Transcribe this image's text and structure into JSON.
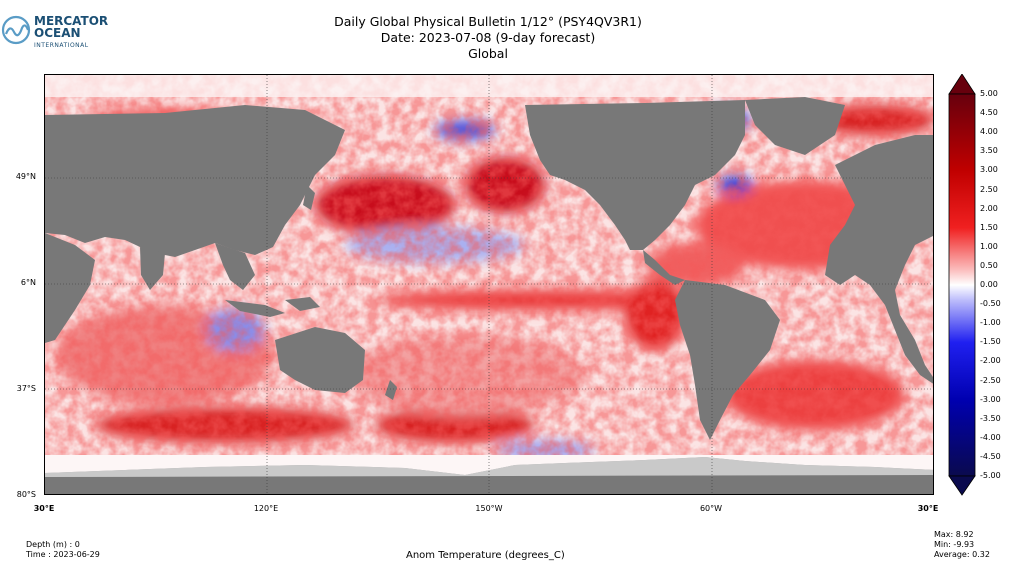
{
  "logo": {
    "line1": "MERCATOR",
    "line2": "OCEAN",
    "line3": "INTERNATIONAL"
  },
  "title": {
    "line1": "Daily Global Physical Bulletin 1/12° (PSY4QV3R1)",
    "line2": "Date: 2023-07-08 (9-day forecast)",
    "line3": "Global"
  },
  "latitude_labels": [
    "49°N",
    "6°N",
    "37°S",
    "80°S"
  ],
  "longitude_labels": [
    "30°E",
    "120°E",
    "150°W",
    "60°W",
    "30°E"
  ],
  "colorbar": {
    "ticks": [
      "5.00",
      "4.50",
      "4.00",
      "3.50",
      "3.00",
      "2.50",
      "2.00",
      "1.50",
      "1.00",
      "0.50",
      "0.00",
      "-0.50",
      "-1.00",
      "-1.50",
      "-2.00",
      "-2.50",
      "-3.00",
      "-3.50",
      "-4.00",
      "-4.50",
      "-5.00"
    ],
    "range": [
      -5,
      5
    ],
    "colors": {
      "max": "#67000d",
      "high": "#e0130f",
      "mid": "#ffffff",
      "low": "#1c1ce0",
      "min": "#0a0a5e"
    }
  },
  "colors": {
    "land": "#787878",
    "ocean_base": "#fbe7e7",
    "warm": "#e01010",
    "cool": "#4a4ae0"
  },
  "footer": {
    "depth": "Depth (m) : 0",
    "time": "Time : 2023-06-29",
    "variable": "Anom Temperature (degrees_C)",
    "max": "Max:  8.92",
    "min": "Min:  -9.93",
    "average": "Average:  0.32"
  }
}
